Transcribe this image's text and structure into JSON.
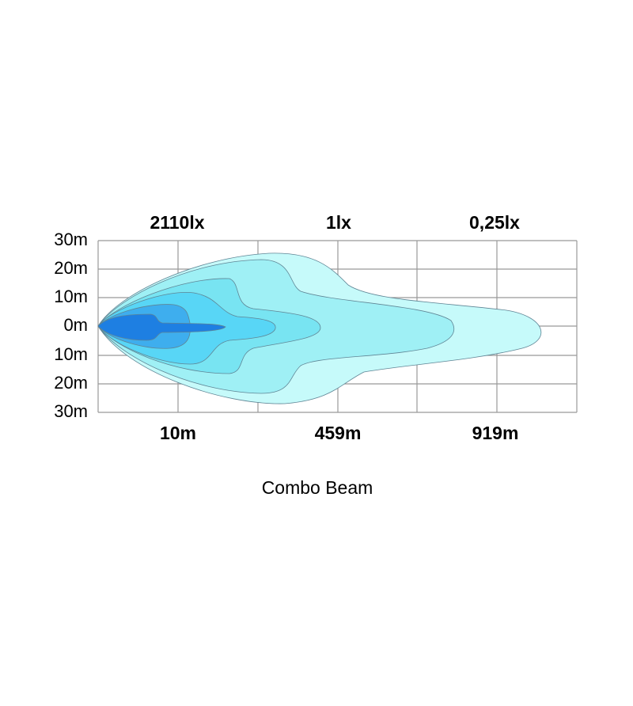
{
  "top_labels": [
    "2110lx",
    "1lx",
    "0,25lx"
  ],
  "y_labels": [
    "30m",
    "20m",
    "10m",
    "0m",
    "10m",
    "20m",
    "30m"
  ],
  "bottom_labels": [
    "10m",
    "459m",
    "919m"
  ],
  "caption": "Combo Beam"
}
